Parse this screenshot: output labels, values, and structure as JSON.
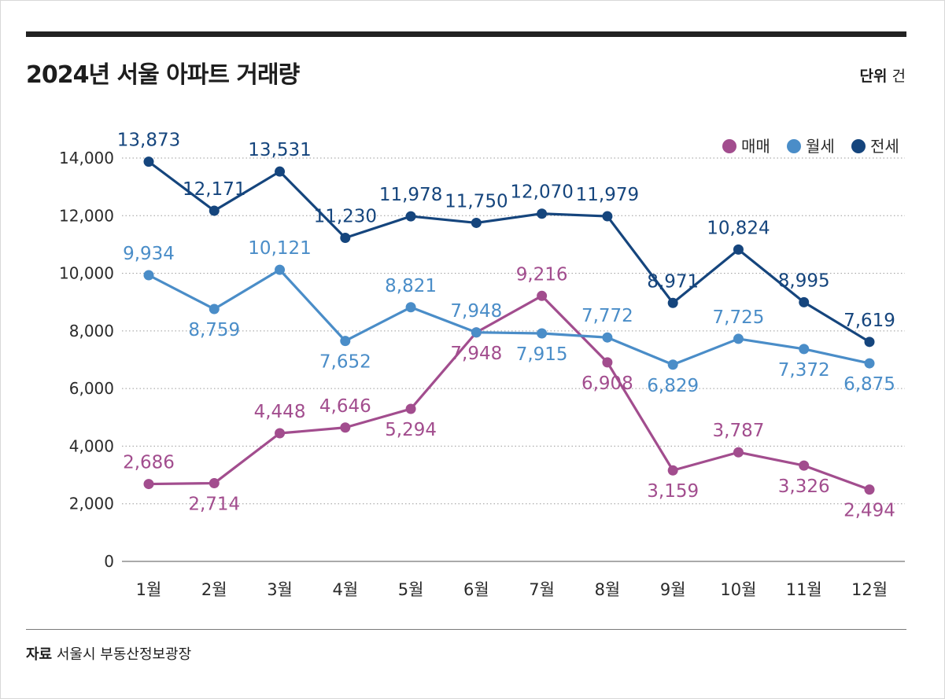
{
  "header": {
    "title": "2024년 서울 아파트 거래량",
    "unit_label": "단위",
    "unit_value": "건"
  },
  "footer": {
    "source_label": "자료",
    "source_value": "서울시 부동산정보광장"
  },
  "chart_data": {
    "type": "line",
    "title": "2024년 서울 아파트 거래량",
    "xlabel": "",
    "ylabel": "",
    "ylim": [
      0,
      14000
    ],
    "yticks": [
      0,
      2000,
      4000,
      6000,
      8000,
      10000,
      12000,
      14000
    ],
    "ytick_labels": [
      "0",
      "2,000",
      "4,000",
      "6,000",
      "8,000",
      "10,000",
      "12,000",
      "14,000"
    ],
    "categories": [
      "1월",
      "2월",
      "3월",
      "4월",
      "5월",
      "6월",
      "7월",
      "8월",
      "9월",
      "10월",
      "11월",
      "12월"
    ],
    "grid": true,
    "legend_position": "top-right",
    "series": [
      {
        "name": "매매",
        "color": "#a24d8e",
        "values": [
          2686,
          2714,
          4448,
          4646,
          5294,
          7948,
          9216,
          6908,
          3159,
          3787,
          3326,
          2494
        ],
        "labels": [
          "2,686",
          "2,714",
          "4,448",
          "4,646",
          "5,294",
          "7,948",
          "9,216",
          "6,908",
          "3,159",
          "3,787",
          "3,326",
          "2,494"
        ]
      },
      {
        "name": "월세",
        "color": "#4a8dc8",
        "values": [
          9934,
          8759,
          10121,
          7652,
          8821,
          7948,
          7915,
          7772,
          6829,
          7725,
          7372,
          6875
        ],
        "labels": [
          "9,934",
          "8,759",
          "10,121",
          "7,652",
          "8,821",
          "7,948",
          "7,915",
          "7,772",
          "6,829",
          "7,725",
          "7,372",
          "6,875"
        ]
      },
      {
        "name": "전세",
        "color": "#15457d",
        "values": [
          13873,
          12171,
          13531,
          11230,
          11978,
          11750,
          12070,
          11979,
          8971,
          10824,
          8995,
          7619
        ],
        "labels": [
          "13,873",
          "12,171",
          "13,531",
          "11,230",
          "11,978",
          "11,750",
          "12,070",
          "11,979",
          "8,971",
          "10,824",
          "8,995",
          "7,619"
        ]
      }
    ]
  }
}
